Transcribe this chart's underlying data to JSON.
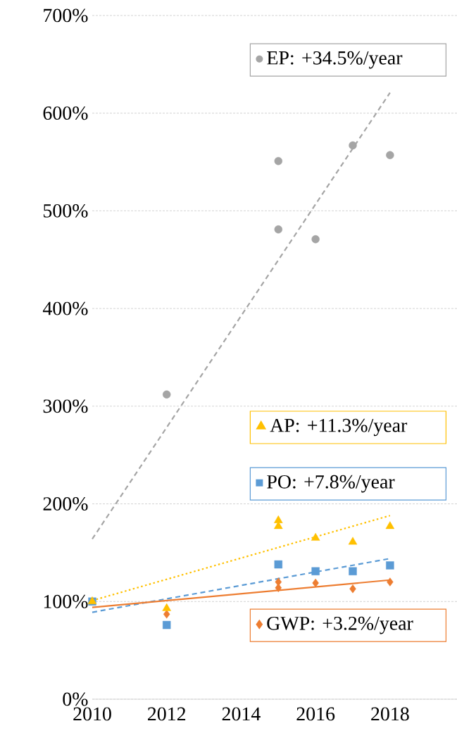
{
  "chart_data": {
    "type": "scatter",
    "xlim": [
      2010,
      2019.8
    ],
    "ylim": [
      0,
      700
    ],
    "xticks": [
      2010,
      2012,
      2014,
      2016,
      2018
    ],
    "yticks": [
      {
        "value": 0,
        "label": "0%"
      },
      {
        "value": 100,
        "label": "100%"
      },
      {
        "value": 200,
        "label": "200%"
      },
      {
        "value": 300,
        "label": "300%"
      },
      {
        "value": 400,
        "label": "400%"
      },
      {
        "value": 500,
        "label": "500%"
      },
      {
        "value": 600,
        "label": "600%"
      },
      {
        "value": 700,
        "label": "700%"
      }
    ],
    "grid": "y",
    "legend": "right",
    "series": [
      {
        "name": "EP: +34.5%/year",
        "color": "#a5a5a5",
        "marker": "circle",
        "x": [
          2012,
          2015,
          2015,
          2016,
          2017,
          2018
        ],
        "values": [
          312,
          551,
          481,
          471,
          567,
          557
        ]
      },
      {
        "name": "AP: +11.3%/year",
        "color": "#ffc000",
        "marker": "triangle",
        "x": [
          2010,
          2012,
          2015,
          2015,
          2016,
          2017,
          2018
        ],
        "values": [
          100,
          93,
          183,
          177,
          165,
          161,
          177
        ]
      },
      {
        "name": "PO: +7.8%/year",
        "color": "#5b9bd5",
        "marker": "square",
        "x": [
          2010,
          2012,
          2015,
          2016,
          2017,
          2018
        ],
        "values": [
          100,
          76,
          138,
          131,
          131,
          137
        ]
      },
      {
        "name": "GWP: +3.2%/year",
        "color": "#ed7d31",
        "marker": "diamond",
        "x": [
          2012,
          2015,
          2015,
          2016,
          2017,
          2018
        ],
        "values": [
          87,
          120,
          114,
          119,
          113,
          120
        ]
      },
      {
        "type": "line",
        "color": "#a5a5a5",
        "line_style": "dashed",
        "x": [
          2010,
          2018
        ],
        "values": [
          164,
          621
        ]
      },
      {
        "type": "line",
        "color": "#ffc000",
        "line_style": "dotted",
        "x": [
          2010,
          2018
        ],
        "values": [
          101,
          188
        ]
      },
      {
        "type": "line",
        "color": "#5b9bd5",
        "line_style": "dashed",
        "x": [
          2010,
          2018
        ],
        "values": [
          89,
          144
        ]
      },
      {
        "type": "line",
        "color": "#ed7d31",
        "line_style": "solid",
        "x": [
          2010,
          2018
        ],
        "values": [
          94,
          122
        ]
      }
    ]
  }
}
